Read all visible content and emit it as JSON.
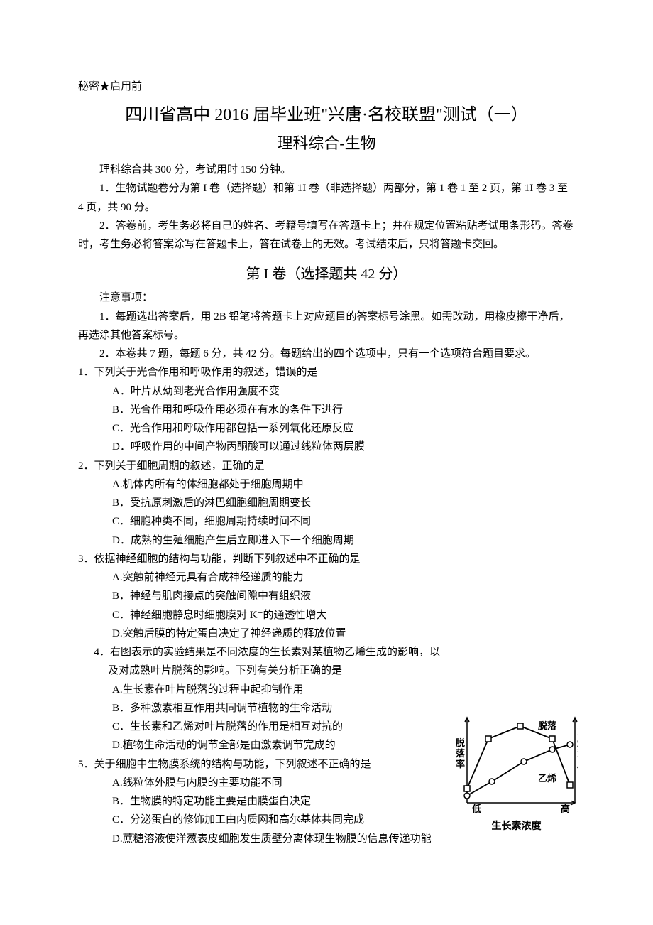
{
  "header": {
    "confidential": "秘密★启用前",
    "title_main": "四川省高中 2016 届毕业班\"兴唐·名校联盟\"测试（一）",
    "title_sub": "理科综合-生物"
  },
  "intro": {
    "line1": "理科综合共 300 分，考试用时 150 分钟。",
    "line2": "1．生物试题卷分为第 I 卷（选择题）和第 1I 卷（非选择题）两部分，第 1 卷 1 至 2 页，第 1I 卷 3 至 4 页，共 90 分。",
    "line3": "2．答卷前，考生务必将自己的姓名、考籍号填写在答题卡上；并在规定位置粘贴考试用条形码。答卷时，考生务必将答案涂写在答题卡上，答在试卷上的无效。考试结束后，只将答题卡交回。"
  },
  "section1": {
    "head": "第 I 卷（选择题共 42 分）",
    "notice_label": "注意事项：",
    "notice1": "1．每题选出答案后，用 2B 铅笔将答题卡上对应题目的答案标号涂黑。如需改动，用橡皮擦干净后，再选涂其他答案标号。",
    "notice2": "2．本卷共 7 题，每题 6 分，共 42 分。每题给出的四个选项中，只有一个选项符合题目要求。"
  },
  "questions": [
    {
      "stem": "1．下列关于光合作用和呼吸作用的叙述，错误的是",
      "opts": [
        "A．叶片从幼到老光合作用强度不变",
        "B．光合作用和呼吸作用必须在有水的条件下进行",
        "C．光合作用和呼吸作用都包括一系列氧化还原反应",
        "D．呼吸作用的中间产物丙酮酸可以通过线粒体两层膜"
      ]
    },
    {
      "stem": "2．下列关于细胞周期的叙述，正确的是",
      "opts": [
        "A.机体内所有的体细胞都处于细胞周期中",
        "B．受抗原刺激后的淋巴细胞细胞周期变长",
        "C．细胞种类不同，细胞周期持续时间不同",
        "D．成熟的生殖细胞产生后立即进入下一个细胞周期"
      ]
    },
    {
      "stem": "3．依据神经细胞的结构与功能，判断下列叙述中不正确的是",
      "opts": [
        "A.突触前神经元具有合成神经递质的能力",
        "B．神经与肌肉接点的突触间隙中有组织液",
        "C．神经细胞静息时细胞膜对 K⁺的通透性增大",
        "D.突触后膜的特定蛋白决定了神经递质的释放位置"
      ]
    },
    {
      "stem": "4．右图表示的实验结果是不同浓度的生长素对某植物乙烯生成的影响，以及对成熟叶片脱落的影响。下列有关分析正确的是",
      "opts": [
        "A.生长素在叶片脱落的过程中起抑制作用",
        "B．多种激素相互作用共同调节植物的生命活动",
        "C．生长素和乙烯对叶片脱落的作用是相互对抗的",
        "D.植物生命活动的调节全部是由激素调节完成的"
      ]
    },
    {
      "stem": "5．关于细胞中生物膜系统的结构与功能，下列叙述不正确的是",
      "opts": [
        "A.线粒体外膜与内膜的主要功能不同",
        "B．生物膜的特定功能主要是由膜蛋白决定",
        "C．分泌蛋白的修饰加工由内质网和高尔基体共同完成",
        "D.蔗糖溶液使洋葱表皮细胞发生质壁分离体现生物膜的信息传递功能"
      ]
    }
  ],
  "chart": {
    "y_left_label": "脱落率",
    "y_right_label": "乙烯浓度",
    "x_label": "生长素浓度",
    "x_low": "低",
    "x_high": "高",
    "series1_label": "脱落",
    "series2_label": "乙烯",
    "series1_points": [
      [
        15,
        110
      ],
      [
        45,
        40
      ],
      [
        90,
        22
      ],
      [
        135,
        40
      ],
      [
        160,
        105
      ]
    ],
    "series2_points": [
      [
        15,
        120
      ],
      [
        50,
        100
      ],
      [
        95,
        72
      ],
      [
        135,
        55
      ],
      [
        160,
        48
      ]
    ],
    "line_color": "#000000",
    "marker1": "square",
    "marker2": "circle",
    "background": "#ffffff"
  }
}
